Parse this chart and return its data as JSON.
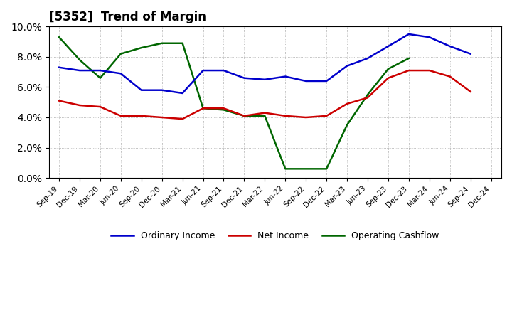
{
  "title": "[5352]  Trend of Margin",
  "x_labels": [
    "Sep-19",
    "Dec-19",
    "Mar-20",
    "Jun-20",
    "Sep-20",
    "Dec-20",
    "Mar-21",
    "Jun-21",
    "Sep-21",
    "Dec-21",
    "Mar-22",
    "Jun-22",
    "Sep-22",
    "Dec-22",
    "Mar-23",
    "Jun-23",
    "Sep-23",
    "Dec-23",
    "Mar-24",
    "Jun-24",
    "Sep-24",
    "Dec-24"
  ],
  "ordinary_income": [
    7.3,
    7.1,
    7.1,
    6.9,
    5.8,
    5.8,
    5.6,
    7.1,
    7.1,
    6.6,
    6.5,
    6.7,
    6.4,
    6.4,
    7.4,
    7.9,
    8.7,
    9.5,
    9.3,
    8.7,
    8.2,
    null
  ],
  "net_income": [
    5.1,
    4.8,
    4.7,
    4.1,
    4.1,
    4.0,
    3.9,
    4.6,
    4.6,
    4.1,
    4.3,
    4.1,
    4.0,
    4.1,
    4.9,
    5.3,
    6.6,
    7.1,
    7.1,
    6.7,
    5.7,
    null
  ],
  "operating_cashflow": [
    9.3,
    7.8,
    6.6,
    8.2,
    8.6,
    8.9,
    8.9,
    4.6,
    4.5,
    4.1,
    4.1,
    0.6,
    0.6,
    0.6,
    3.5,
    5.5,
    7.2,
    7.9,
    null,
    null,
    null,
    null
  ],
  "ylim": [
    0.0,
    10.0
  ],
  "yticks": [
    0.0,
    2.0,
    4.0,
    6.0,
    8.0,
    10.0
  ],
  "colors": {
    "ordinary_income": "#0000cc",
    "net_income": "#cc0000",
    "operating_cashflow": "#006600"
  },
  "legend_labels": [
    "Ordinary Income",
    "Net Income",
    "Operating Cashflow"
  ],
  "background_color": "#ffffff",
  "grid_color": "#888888",
  "line_width": 1.8
}
